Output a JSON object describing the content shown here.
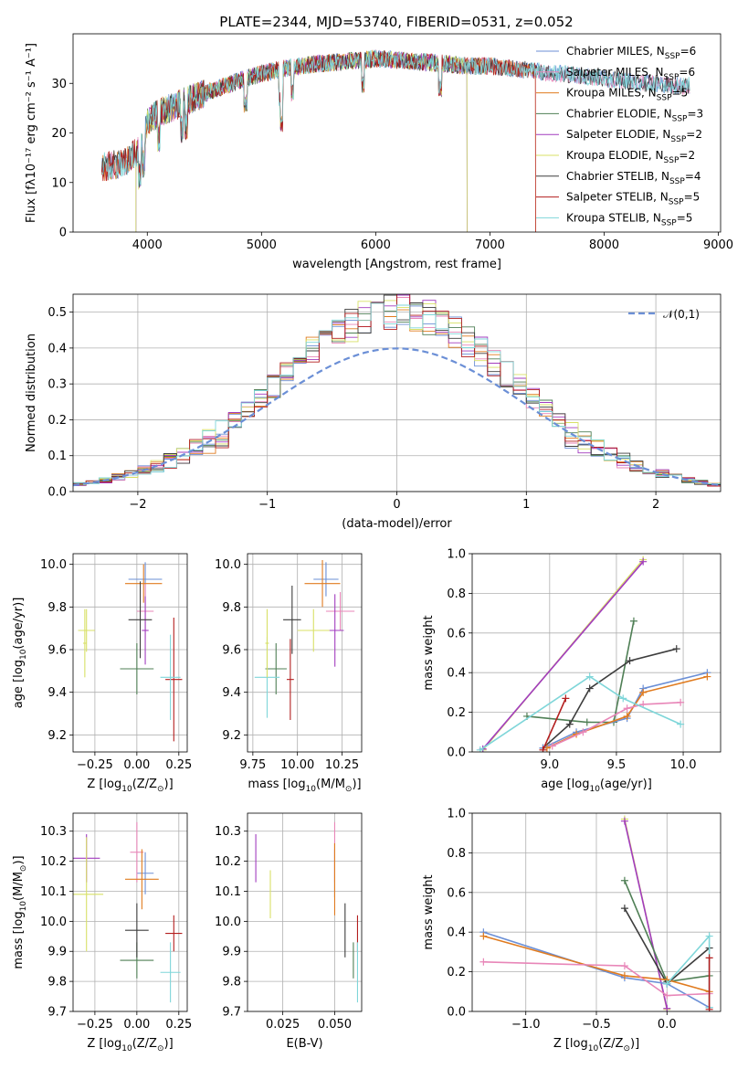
{
  "figure": {
    "title": "PLATE=2344, MJD=53740, FIBERID=0531, z=0.052"
  },
  "colors": {
    "chabrier_miles": "#6b8fd6",
    "salpeter_miles": "#e886b8",
    "kroupa_miles": "#e07b1f",
    "chabrier_elodie": "#4f7f55",
    "salpeter_elodie": "#a23cbf",
    "kroupa_elodie": "#d8e066",
    "chabrier_stelib": "#3d3d3d",
    "salpeter_stelib": "#b31e1e",
    "kroupa_stelib": "#7fd6d9"
  },
  "chart_data": [
    {
      "id": "spectrum",
      "type": "line",
      "xlabel": "wavelength [Angstrom, rest frame]",
      "ylabel": "Flux [fλ10⁻¹⁷ erg cm⁻² s⁻¹ A⁻¹]",
      "xlim": [
        3350,
        9020
      ],
      "ylim": [
        0,
        40
      ],
      "xticks": [
        4000,
        5000,
        6000,
        7000,
        8000,
        9000
      ],
      "yticks": [
        0,
        10,
        20,
        30
      ],
      "grid": false,
      "legend_position": "top-right",
      "series": [
        {
          "name": "Chabrier MILES, N$_{SSP}$=6",
          "key": "chabrier_miles"
        },
        {
          "name": "Salpeter MILES, N$_{SSP}$=6",
          "key": "salpeter_miles"
        },
        {
          "name": "Kroupa MILES, N$_{SSP}$=5",
          "key": "kroupa_miles"
        },
        {
          "name": "Chabrier ELODIE, N$_{SSP}$=3",
          "key": "chabrier_elodie"
        },
        {
          "name": "Salpeter ELODIE, N$_{SSP}$=2",
          "key": "salpeter_elodie"
        },
        {
          "name": "Kroupa ELODIE, N$_{SSP}$=2",
          "key": "kroupa_elodie"
        },
        {
          "name": "Chabrier STELIB, N$_{SSP}$=4",
          "key": "chabrier_stelib"
        },
        {
          "name": "Salpeter STELIB, N$_{SSP}$=5",
          "key": "salpeter_stelib"
        },
        {
          "name": "Kroupa STELIB, N$_{SSP}$=5",
          "key": "kroupa_stelib"
        }
      ],
      "continuum": {
        "x": [
          3600,
          3800,
          3950,
          4000,
          4100,
          4300,
          4500,
          4800,
          5000,
          5200,
          5500,
          5800,
          6000,
          6300,
          6600,
          6800,
          7000,
          7200,
          7400,
          7600,
          7800,
          8000,
          8200,
          8400,
          8600,
          8750
        ],
        "y": [
          13,
          14,
          17,
          22,
          24,
          26,
          28,
          30.5,
          32,
          33,
          34,
          34.5,
          35,
          34.5,
          34,
          33.5,
          33.5,
          33,
          32.5,
          32,
          31.5,
          31,
          30.5,
          30,
          29.5,
          29.5
        ]
      },
      "wavelength_range": [
        3600,
        8750
      ],
      "data_sections": [
        {
          "key": "chabrier_miles",
          "x_range": [
            3600,
            8750
          ]
        },
        {
          "key": "salpeter_miles",
          "x_range": [
            3600,
            8750
          ]
        },
        {
          "key": "kroupa_miles",
          "x_range": [
            3600,
            7400
          ]
        },
        {
          "key": "chabrier_elodie",
          "x_range": [
            3900,
            6800
          ]
        },
        {
          "key": "salpeter_elodie",
          "x_range": [
            3900,
            6800
          ]
        },
        {
          "key": "kroupa_elodie",
          "x_range": [
            3900,
            6800
          ]
        },
        {
          "key": "chabrier_stelib",
          "x_range": [
            3600,
            8750
          ]
        },
        {
          "key": "salpeter_stelib",
          "x_range": [
            3600,
            7400
          ]
        },
        {
          "key": "kroupa_stelib",
          "x_range": [
            3600,
            8750
          ]
        }
      ]
    },
    {
      "id": "residuals",
      "type": "area",
      "xlabel": "(data-model)/error",
      "ylabel": "Normed distribution",
      "xlim": [
        -2.5,
        2.5
      ],
      "ylim": [
        0,
        0.55
      ],
      "xticks": [
        -2,
        -1,
        0,
        1,
        2
      ],
      "yticks": [
        0.0,
        0.1,
        0.2,
        0.3,
        0.4,
        0.5
      ],
      "grid": true,
      "legend_position": "top-right",
      "reference_curve": {
        "name": "$\\mathcal{N}(0,1)$",
        "color": "#6b8fd6"
      },
      "bin_width": 0.1,
      "bin_start": -2.5
    },
    {
      "id": "age_vs_Z",
      "type": "scatter",
      "xlabel": "Z [log$_{10}$(Z/Z$_\\odot$)]",
      "ylabel": "age  [log$_{10}$(age/yr)]",
      "xlim": [
        -0.38,
        0.3
      ],
      "ylim": [
        9.12,
        10.05
      ],
      "xticks": [
        -0.25,
        0.0,
        0.25
      ],
      "yticks": [
        9.2,
        9.4,
        9.6,
        9.8,
        10.0
      ],
      "grid": true,
      "points": [
        {
          "key": "chabrier_miles",
          "x": 0.05,
          "y": 9.93,
          "xerr": 0.1,
          "yerr": 0.08
        },
        {
          "key": "salpeter_miles",
          "x": 0.05,
          "y": 9.78,
          "xerr": 0.05,
          "yerr": 0.13
        },
        {
          "key": "kroupa_miles",
          "x": 0.04,
          "y": 9.91,
          "xerr": 0.11,
          "yerr": 0.09
        },
        {
          "key": "chabrier_elodie",
          "x": 0.0,
          "y": 9.51,
          "xerr": 0.1,
          "yerr": 0.12
        },
        {
          "key": "salpeter_elodie",
          "x": 0.05,
          "y": 9.69,
          "xerr": 0.02,
          "yerr": 0.16
        },
        {
          "key": "kroupa_elodie",
          "x": -0.3,
          "y": 9.69,
          "xerr": 0.05,
          "yerr": 0.1
        },
        {
          "key": "chabrier_stelib",
          "x": 0.02,
          "y": 9.74,
          "xerr": 0.07,
          "yerr": 0.18
        },
        {
          "key": "salpeter_stelib",
          "x": 0.22,
          "y": 9.46,
          "xerr": 0.05,
          "yerr": 0.29
        },
        {
          "key": "kroupa_stelib",
          "x": 0.2,
          "y": 9.47,
          "xerr": 0.06,
          "yerr": 0.2
        },
        {
          "key": "kroupa_elodie",
          "x": -0.31,
          "y": 9.63,
          "xerr": 0.01,
          "yerr": 0.16
        }
      ]
    },
    {
      "id": "age_vs_mass",
      "type": "scatter",
      "xlabel": "mass [log$_{10}$(M/M$_\\odot$)]",
      "ylabel": "",
      "xlim": [
        9.72,
        10.36
      ],
      "ylim": [
        9.12,
        10.05
      ],
      "xticks": [
        9.75,
        10.0,
        10.25
      ],
      "yticks": [
        9.2,
        9.4,
        9.6,
        9.8,
        10.0
      ],
      "grid": true,
      "points": [
        {
          "key": "chabrier_miles",
          "x": 10.16,
          "y": 9.93,
          "xerr": 0.07,
          "yerr": 0.08
        },
        {
          "key": "salpeter_miles",
          "x": 10.24,
          "y": 9.78,
          "xerr": 0.08,
          "yerr": 0.09
        },
        {
          "key": "kroupa_miles",
          "x": 10.14,
          "y": 9.91,
          "xerr": 0.1,
          "yerr": 0.11
        },
        {
          "key": "chabrier_elodie",
          "x": 9.88,
          "y": 9.51,
          "xerr": 0.06,
          "yerr": 0.12
        },
        {
          "key": "salpeter_elodie",
          "x": 10.21,
          "y": 9.69,
          "xerr": 0.05,
          "yerr": 0.17
        },
        {
          "key": "kroupa_elodie",
          "x": 10.09,
          "y": 9.69,
          "xerr": 0.09,
          "yerr": 0.1
        },
        {
          "key": "chabrier_stelib",
          "x": 9.97,
          "y": 9.74,
          "xerr": 0.05,
          "yerr": 0.16
        },
        {
          "key": "salpeter_stelib",
          "x": 9.96,
          "y": 9.46,
          "xerr": 0.02,
          "yerr": 0.19
        },
        {
          "key": "kroupa_stelib",
          "x": 9.83,
          "y": 9.47,
          "xerr": 0.07,
          "yerr": 0.19
        },
        {
          "key": "kroupa_elodie",
          "x": 9.83,
          "y": 9.63,
          "xerr": 0.01,
          "yerr": 0.16
        }
      ]
    },
    {
      "id": "weight_vs_age",
      "type": "line",
      "xlabel": "age  [log$_{10}$(age/yr)]",
      "ylabel": "mass weight",
      "xlim": [
        8.42,
        10.28
      ],
      "ylim": [
        0,
        1.0
      ],
      "xticks": [
        9.0,
        9.5,
        10.0
      ],
      "yticks": [
        0.0,
        0.2,
        0.4,
        0.6,
        0.8,
        1.0
      ],
      "grid": true,
      "series": [
        {
          "key": "kroupa_elodie",
          "x": [
            8.5,
            9.7
          ],
          "y": [
            0.01,
            0.97
          ]
        },
        {
          "key": "salpeter_elodie",
          "x": [
            8.5,
            9.7
          ],
          "y": [
            0.015,
            0.96
          ]
        },
        {
          "key": "chabrier_elodie",
          "x": [
            8.83,
            9.28,
            9.48,
            9.63
          ],
          "y": [
            0.18,
            0.15,
            0.15,
            0.66
          ]
        },
        {
          "key": "chabrier_stelib",
          "x": [
            8.95,
            9.15,
            9.3,
            9.6,
            9.95
          ],
          "y": [
            0.02,
            0.14,
            0.32,
            0.46,
            0.52
          ]
        },
        {
          "key": "chabrier_miles",
          "x": [
            8.95,
            9.2,
            9.58,
            9.7,
            10.18
          ],
          "y": [
            0.02,
            0.1,
            0.17,
            0.32,
            0.4
          ]
        },
        {
          "key": "kroupa_miles",
          "x": [
            8.98,
            9.2,
            9.58,
            9.7,
            10.18
          ],
          "y": [
            0.02,
            0.09,
            0.18,
            0.3,
            0.38
          ]
        },
        {
          "key": "salpeter_miles",
          "x": [
            9.02,
            9.25,
            9.58,
            9.7,
            9.98
          ],
          "y": [
            0.03,
            0.1,
            0.22,
            0.24,
            0.25
          ]
        },
        {
          "key": "kroupa_stelib",
          "x": [
            8.48,
            9.3,
            9.55,
            9.98
          ],
          "y": [
            0.01,
            0.38,
            0.27,
            0.14
          ]
        },
        {
          "key": "salpeter_stelib",
          "x": [
            8.95,
            9.12
          ],
          "y": [
            0.01,
            0.27
          ]
        }
      ]
    },
    {
      "id": "mass_vs_Z",
      "type": "scatter",
      "xlabel": "Z [log$_{10}$(Z/Z$_\\odot$)]",
      "ylabel": "mass [log$_{10}$(M/M$_\\odot$)]",
      "xlim": [
        -0.38,
        0.3
      ],
      "ylim": [
        9.7,
        10.36
      ],
      "xticks": [
        -0.25,
        0.0,
        0.25
      ],
      "yticks": [
        9.7,
        9.8,
        9.9,
        10.0,
        10.1,
        10.2,
        10.3
      ],
      "grid": true,
      "points": [
        {
          "key": "chabrier_miles",
          "x": 0.05,
          "y": 10.16,
          "xerr": 0.05,
          "yerr": 0.07
        },
        {
          "key": "salpeter_miles",
          "x": 0.0,
          "y": 10.23,
          "xerr": 0.04,
          "yerr": 0.1
        },
        {
          "key": "kroupa_miles",
          "x": 0.03,
          "y": 10.14,
          "xerr": 0.1,
          "yerr": 0.1
        },
        {
          "key": "chabrier_elodie",
          "x": 0.0,
          "y": 9.87,
          "xerr": 0.1,
          "yerr": 0.06
        },
        {
          "key": "salpeter_elodie",
          "x": -0.3,
          "y": 10.21,
          "xerr": 0.08,
          "yerr": 0.08
        },
        {
          "key": "kroupa_elodie",
          "x": -0.3,
          "y": 10.09,
          "xerr": 0.1,
          "yerr": 0.19
        },
        {
          "key": "chabrier_stelib",
          "x": 0.0,
          "y": 9.97,
          "xerr": 0.07,
          "yerr": 0.09
        },
        {
          "key": "salpeter_stelib",
          "x": 0.22,
          "y": 9.96,
          "xerr": 0.05,
          "yerr": 0.06
        },
        {
          "key": "kroupa_stelib",
          "x": 0.2,
          "y": 9.83,
          "xerr": 0.06,
          "yerr": 0.1
        }
      ]
    },
    {
      "id": "mass_vs_ebv",
      "type": "scatter",
      "xlabel": "E(B-V)",
      "ylabel": "",
      "xlim": [
        0.008,
        0.063
      ],
      "ylim": [
        9.7,
        10.36
      ],
      "xticks": [
        0.025,
        0.05
      ],
      "yticks": [
        9.7,
        9.8,
        9.9,
        10.0,
        10.1,
        10.2,
        10.3
      ],
      "grid": true,
      "points": [
        {
          "key": "chabrier_miles",
          "x": 0.05,
          "y": 10.16,
          "yerr": 0.08
        },
        {
          "key": "salpeter_miles",
          "x": 0.05,
          "y": 10.23,
          "yerr": 0.1
        },
        {
          "key": "kroupa_miles",
          "x": 0.05,
          "y": 10.14,
          "yerr": 0.12
        },
        {
          "key": "chabrier_elodie",
          "x": 0.059,
          "y": 9.87,
          "yerr": 0.06
        },
        {
          "key": "salpeter_elodie",
          "x": 0.012,
          "y": 10.21,
          "yerr": 0.08
        },
        {
          "key": "kroupa_elodie",
          "x": 0.019,
          "y": 10.09,
          "yerr": 0.08
        },
        {
          "key": "chabrier_stelib",
          "x": 0.055,
          "y": 9.97,
          "yerr": 0.09
        },
        {
          "key": "salpeter_stelib",
          "x": 0.061,
          "y": 9.96,
          "yerr": 0.06
        },
        {
          "key": "kroupa_stelib",
          "x": 0.061,
          "y": 9.83,
          "yerr": 0.1
        }
      ]
    },
    {
      "id": "weight_vs_Z",
      "type": "line",
      "xlabel": "Z [log$_{10}$(Z/Z$_\\odot$)]",
      "ylabel": "mass weight",
      "xlim": [
        -1.38,
        0.38
      ],
      "ylim": [
        0,
        1.0
      ],
      "xticks": [
        -1.0,
        -0.5,
        0.0
      ],
      "yticks": [
        0.0,
        0.2,
        0.4,
        0.6,
        0.8,
        1.0
      ],
      "grid": true,
      "series": [
        {
          "key": "kroupa_elodie",
          "x": [
            -0.3,
            0.0
          ],
          "y": [
            0.97,
            0.01
          ]
        },
        {
          "key": "salpeter_elodie",
          "x": [
            -0.3,
            0.0
          ],
          "y": [
            0.96,
            0.015
          ]
        },
        {
          "key": "chabrier_elodie",
          "x": [
            -0.3,
            0.0,
            0.3
          ],
          "y": [
            0.66,
            0.15,
            0.18
          ]
        },
        {
          "key": "chabrier_stelib",
          "x": [
            -0.3,
            0.0,
            0.3
          ],
          "y": [
            0.52,
            0.14,
            0.32
          ]
        },
        {
          "key": "chabrier_miles",
          "x": [
            -1.3,
            -0.3,
            0.0,
            0.3
          ],
          "y": [
            0.4,
            0.17,
            0.14,
            0.02
          ]
        },
        {
          "key": "kroupa_miles",
          "x": [
            -1.3,
            -0.3,
            0.0,
            0.3
          ],
          "y": [
            0.38,
            0.18,
            0.16,
            0.1
          ]
        },
        {
          "key": "salpeter_miles",
          "x": [
            -1.3,
            -0.3,
            0.0,
            0.3
          ],
          "y": [
            0.25,
            0.23,
            0.08,
            0.09
          ]
        },
        {
          "key": "kroupa_stelib",
          "x": [
            0.0,
            0.3,
            0.3
          ],
          "y": [
            0.14,
            0.38,
            0.02
          ]
        },
        {
          "key": "salpeter_stelib",
          "x": [
            0.3,
            0.3
          ],
          "y": [
            0.27,
            0.01
          ]
        }
      ]
    }
  ]
}
